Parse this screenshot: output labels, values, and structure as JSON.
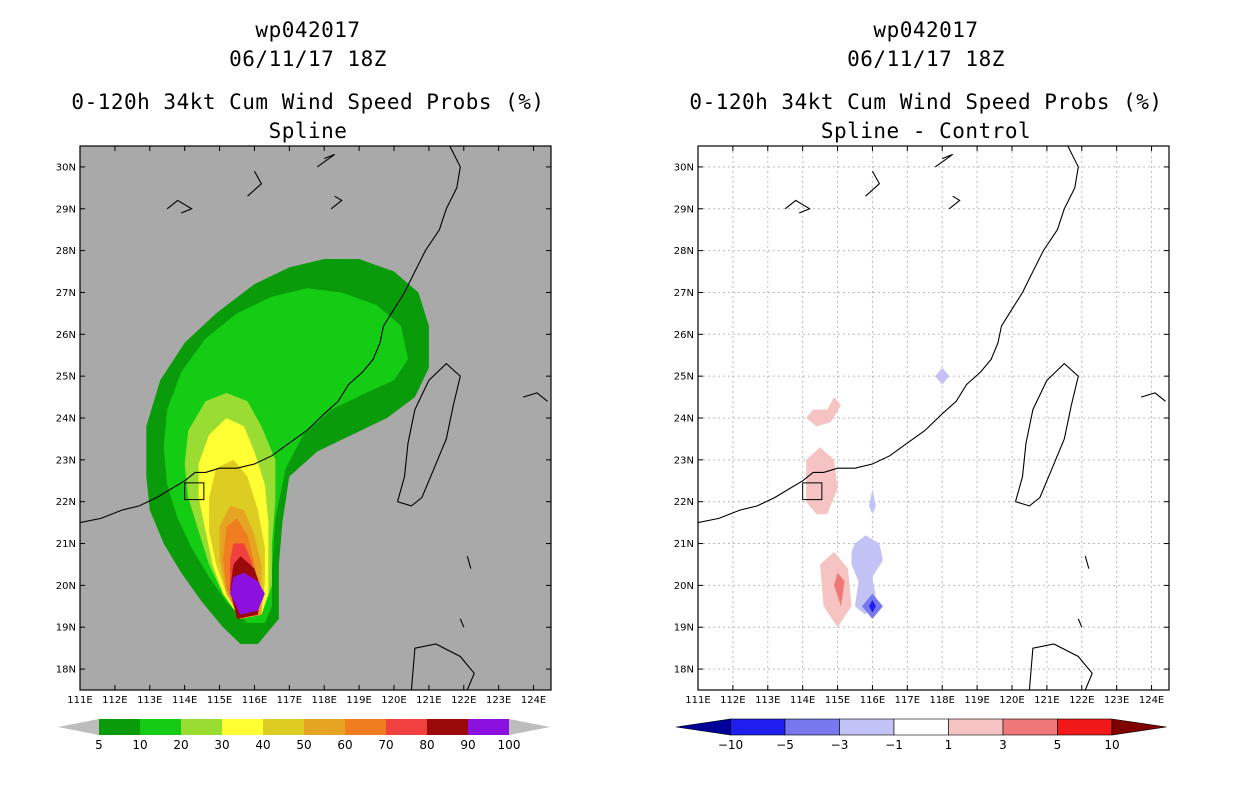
{
  "left": {
    "header": {
      "storm": "wp042017",
      "datetime": "06/11/17 18Z",
      "title": "0-120h 34kt Cum Wind Speed Probs (%)",
      "subtitle": "Spline"
    }
  },
  "right": {
    "header": {
      "storm": "wp042017",
      "datetime": "06/11/17 18Z",
      "title": "0-120h 34kt Cum Wind Speed Probs (%)",
      "subtitle": "Spline - Control"
    }
  },
  "colors": {
    "land_gray": "#a9a9a9",
    "prob_fills": [
      "#0a9b0a",
      "#14cc14",
      "#99dd33",
      "#ffff33",
      "#ddcc22",
      "#e6a423",
      "#f07d20",
      "#f04040",
      "#9b0a0a",
      "#8c10e0"
    ],
    "diff_fills": [
      "#000099",
      "#1e1ef0",
      "#7777ee",
      "#c2c2f4",
      "#ffffff",
      "#f6c3c3",
      "#f07777",
      "#f01818",
      "#800000"
    ]
  },
  "chart_data": [
    {
      "type": "heatmap",
      "title": "0-120h 34kt Cum Wind Speed Probs (%)",
      "subtitle": "Spline",
      "xlim": [
        111,
        124.5
      ],
      "ylim": [
        17.5,
        30.5
      ],
      "x_ticks": [
        "111E",
        "112E",
        "113E",
        "114E",
        "115E",
        "116E",
        "117E",
        "118E",
        "119E",
        "120E",
        "121E",
        "122E",
        "123E",
        "124E"
      ],
      "y_ticks": [
        "18N",
        "19N",
        "20N",
        "21N",
        "22N",
        "23N",
        "24N",
        "25N",
        "26N",
        "27N",
        "28N",
        "29N",
        "30N"
      ],
      "grid": false,
      "colorbar": {
        "levels": [
          "5",
          "10",
          "20",
          "30",
          "40",
          "50",
          "60",
          "70",
          "80",
          "90",
          "100"
        ]
      },
      "contours": [
        {
          "level": 5,
          "color": "#0a9b0a",
          "polygon": [
            [
              116.1,
              18.6
            ],
            [
              115.6,
              18.6
            ],
            [
              115.1,
              19.0
            ],
            [
              114.5,
              19.6
            ],
            [
              113.9,
              20.3
            ],
            [
              113.4,
              21.0
            ],
            [
              113.0,
              21.8
            ],
            [
              112.9,
              22.6
            ],
            [
              112.9,
              23.8
            ],
            [
              113.3,
              24.9
            ],
            [
              114.0,
              25.8
            ],
            [
              114.9,
              26.5
            ],
            [
              116.0,
              27.2
            ],
            [
              117.0,
              27.6
            ],
            [
              118.0,
              27.8
            ],
            [
              119.0,
              27.8
            ],
            [
              120.0,
              27.5
            ],
            [
              120.7,
              27.0
            ],
            [
              121.0,
              26.2
            ],
            [
              121.0,
              25.2
            ],
            [
              120.6,
              24.5
            ],
            [
              119.8,
              24.0
            ],
            [
              118.8,
              23.6
            ],
            [
              117.8,
              23.2
            ],
            [
              117.0,
              22.6
            ],
            [
              116.8,
              21.5
            ],
            [
              116.7,
              20.5
            ],
            [
              116.7,
              19.2
            ]
          ]
        },
        {
          "level": 10,
          "color": "#14cc14",
          "polygon": [
            [
              116.3,
              19.1
            ],
            [
              115.8,
              19.1
            ],
            [
              115.2,
              19.6
            ],
            [
              114.7,
              20.2
            ],
            [
              114.2,
              20.9
            ],
            [
              113.8,
              21.6
            ],
            [
              113.5,
              22.4
            ],
            [
              113.4,
              23.3
            ],
            [
              113.5,
              24.2
            ],
            [
              113.9,
              25.1
            ],
            [
              114.6,
              25.9
            ],
            [
              115.5,
              26.5
            ],
            [
              116.5,
              26.9
            ],
            [
              117.5,
              27.1
            ],
            [
              118.5,
              27.0
            ],
            [
              119.5,
              26.7
            ],
            [
              120.2,
              26.2
            ],
            [
              120.4,
              25.4
            ],
            [
              120.0,
              24.9
            ],
            [
              119.2,
              24.6
            ],
            [
              118.2,
              24.2
            ],
            [
              117.4,
              23.6
            ],
            [
              116.9,
              22.8
            ],
            [
              116.6,
              21.6
            ],
            [
              116.5,
              20.3
            ],
            [
              116.5,
              19.5
            ]
          ]
        },
        {
          "level": 20,
          "color": "#99dd33",
          "polygon": [
            [
              116.2,
              19.3
            ],
            [
              115.6,
              19.2
            ],
            [
              115.1,
              19.8
            ],
            [
              114.7,
              20.5
            ],
            [
              114.4,
              21.3
            ],
            [
              114.1,
              22.1
            ],
            [
              114.0,
              22.9
            ],
            [
              114.1,
              23.7
            ],
            [
              114.6,
              24.4
            ],
            [
              115.2,
              24.6
            ],
            [
              115.8,
              24.4
            ],
            [
              116.2,
              23.8
            ],
            [
              116.6,
              23.0
            ],
            [
              116.6,
              22.0
            ],
            [
              116.5,
              21.0
            ],
            [
              116.5,
              20.0
            ]
          ]
        },
        {
          "level": 30,
          "color": "#ffff33",
          "polygon": [
            [
              116.2,
              19.3
            ],
            [
              115.6,
              19.2
            ],
            [
              115.1,
              19.8
            ],
            [
              114.8,
              20.5
            ],
            [
              114.6,
              21.3
            ],
            [
              114.4,
              22.1
            ],
            [
              114.4,
              22.9
            ],
            [
              114.7,
              23.6
            ],
            [
              115.2,
              24.0
            ],
            [
              115.7,
              23.8
            ],
            [
              116.0,
              23.2
            ],
            [
              116.3,
              22.4
            ],
            [
              116.4,
              21.5
            ],
            [
              116.4,
              20.5
            ],
            [
              116.4,
              19.8
            ]
          ]
        },
        {
          "level": 40,
          "color": "#ddcc22",
          "polygon": [
            [
              116.2,
              19.3
            ],
            [
              115.6,
              19.2
            ],
            [
              115.2,
              19.8
            ],
            [
              114.9,
              20.5
            ],
            [
              114.7,
              21.3
            ],
            [
              114.7,
              22.1
            ],
            [
              114.9,
              22.8
            ],
            [
              115.4,
              23.0
            ],
            [
              115.8,
              22.6
            ],
            [
              116.1,
              21.8
            ],
            [
              116.3,
              20.9
            ],
            [
              116.3,
              20.1
            ]
          ]
        },
        {
          "level": 50,
          "color": "#e6a423",
          "polygon": [
            [
              116.2,
              19.3
            ],
            [
              115.6,
              19.2
            ],
            [
              115.2,
              19.8
            ],
            [
              115.0,
              20.6
            ],
            [
              115.0,
              21.4
            ],
            [
              115.3,
              21.9
            ],
            [
              115.7,
              21.8
            ],
            [
              116.0,
              21.2
            ],
            [
              116.2,
              20.5
            ]
          ]
        },
        {
          "level": 60,
          "color": "#f07d20",
          "polygon": [
            [
              116.1,
              19.3
            ],
            [
              115.6,
              19.2
            ],
            [
              115.2,
              19.9
            ],
            [
              115.1,
              20.6
            ],
            [
              115.2,
              21.4
            ],
            [
              115.5,
              21.6
            ],
            [
              115.8,
              21.2
            ],
            [
              116.0,
              20.5
            ],
            [
              116.1,
              19.9
            ]
          ]
        },
        {
          "level": 70,
          "color": "#f04040",
          "polygon": [
            [
              116.1,
              19.3
            ],
            [
              115.5,
              19.2
            ],
            [
              115.3,
              19.9
            ],
            [
              115.3,
              20.6
            ],
            [
              115.4,
              21.0
            ],
            [
              115.7,
              21.0
            ],
            [
              115.9,
              20.6
            ],
            [
              116.1,
              20.0
            ]
          ]
        },
        {
          "level": 80,
          "color": "#9b0a0a",
          "polygon": [
            [
              116.1,
              19.3
            ],
            [
              115.5,
              19.2
            ],
            [
              115.3,
              19.9
            ],
            [
              115.4,
              20.5
            ],
            [
              115.6,
              20.7
            ],
            [
              116.0,
              20.4
            ],
            [
              116.2,
              19.9
            ]
          ]
        },
        {
          "level": 90,
          "color": "#8c10e0",
          "polygon": [
            [
              116.1,
              19.4
            ],
            [
              115.6,
              19.3
            ],
            [
              115.3,
              19.8
            ],
            [
              115.4,
              20.2
            ],
            [
              115.7,
              20.3
            ],
            [
              116.1,
              20.1
            ],
            [
              116.3,
              19.8
            ]
          ]
        }
      ]
    },
    {
      "type": "heatmap",
      "title": "0-120h 34kt Cum Wind Speed Probs (%)",
      "subtitle": "Spline - Control",
      "xlim": [
        111,
        124.5
      ],
      "ylim": [
        17.5,
        30.5
      ],
      "x_ticks": [
        "111E",
        "112E",
        "113E",
        "114E",
        "115E",
        "116E",
        "117E",
        "118E",
        "119E",
        "120E",
        "121E",
        "122E",
        "123E",
        "124E"
      ],
      "y_ticks": [
        "18N",
        "19N",
        "20N",
        "21N",
        "22N",
        "23N",
        "24N",
        "25N",
        "26N",
        "27N",
        "28N",
        "29N",
        "30N"
      ],
      "grid": true,
      "colorbar": {
        "levels": [
          "-10",
          "-5",
          "-3",
          "-1",
          "1",
          "3",
          "5",
          "10"
        ]
      },
      "contours": [
        {
          "level": 1,
          "color": "#f6c3c3",
          "polygon": [
            [
              114.1,
              24.0
            ],
            [
              114.3,
              24.2
            ],
            [
              114.7,
              24.2
            ],
            [
              114.9,
              24.5
            ],
            [
              115.1,
              24.3
            ],
            [
              114.8,
              23.9
            ],
            [
              114.4,
              23.8
            ]
          ]
        },
        {
          "level": 1,
          "color": "#f6c3c3",
          "polygon": [
            [
              114.1,
              22.0
            ],
            [
              114.1,
              23.0
            ],
            [
              114.5,
              23.3
            ],
            [
              114.9,
              23.0
            ],
            [
              115.0,
              22.3
            ],
            [
              114.7,
              21.7
            ],
            [
              114.4,
              21.7
            ]
          ]
        },
        {
          "level": 1,
          "color": "#f6c3c3",
          "polygon": [
            [
              114.5,
              20.5
            ],
            [
              114.6,
              19.5
            ],
            [
              115.0,
              19.0
            ],
            [
              115.4,
              19.5
            ],
            [
              115.3,
              20.4
            ],
            [
              114.9,
              20.8
            ]
          ]
        },
        {
          "level": 3,
          "color": "#f07777",
          "polygon": [
            [
              114.9,
              20.0
            ],
            [
              115.1,
              19.5
            ],
            [
              115.2,
              20.1
            ],
            [
              115.0,
              20.3
            ]
          ]
        },
        {
          "level": -1,
          "color": "#c2c2f4",
          "polygon": [
            [
              115.4,
              20.8
            ],
            [
              115.5,
              21.0
            ],
            [
              115.8,
              21.2
            ],
            [
              116.2,
              21.0
            ],
            [
              116.3,
              20.6
            ],
            [
              116.0,
              20.2
            ],
            [
              116.1,
              19.7
            ],
            [
              115.8,
              19.3
            ],
            [
              115.5,
              19.5
            ],
            [
              115.6,
              20.1
            ],
            [
              115.4,
              20.5
            ]
          ]
        },
        {
          "level": -1,
          "color": "#c2c2f4",
          "polygon": [
            [
              117.8,
              25.0
            ],
            [
              118.0,
              25.2
            ],
            [
              118.2,
              25.0
            ],
            [
              118.0,
              24.8
            ]
          ]
        },
        {
          "level": -1,
          "color": "#c2c2f4",
          "polygon": [
            [
              115.9,
              21.9
            ],
            [
              116.0,
              22.3
            ],
            [
              116.1,
              21.9
            ],
            [
              116.0,
              21.7
            ]
          ]
        },
        {
          "level": -3,
          "color": "#7777ee",
          "polygon": [
            [
              115.7,
              19.5
            ],
            [
              116.0,
              19.8
            ],
            [
              116.3,
              19.5
            ],
            [
              116.0,
              19.2
            ]
          ]
        },
        {
          "level": -5,
          "color": "#1e1ef0",
          "polygon": [
            [
              115.9,
              19.5
            ],
            [
              116.0,
              19.65
            ],
            [
              116.1,
              19.5
            ],
            [
              116.0,
              19.35
            ]
          ]
        }
      ]
    }
  ]
}
